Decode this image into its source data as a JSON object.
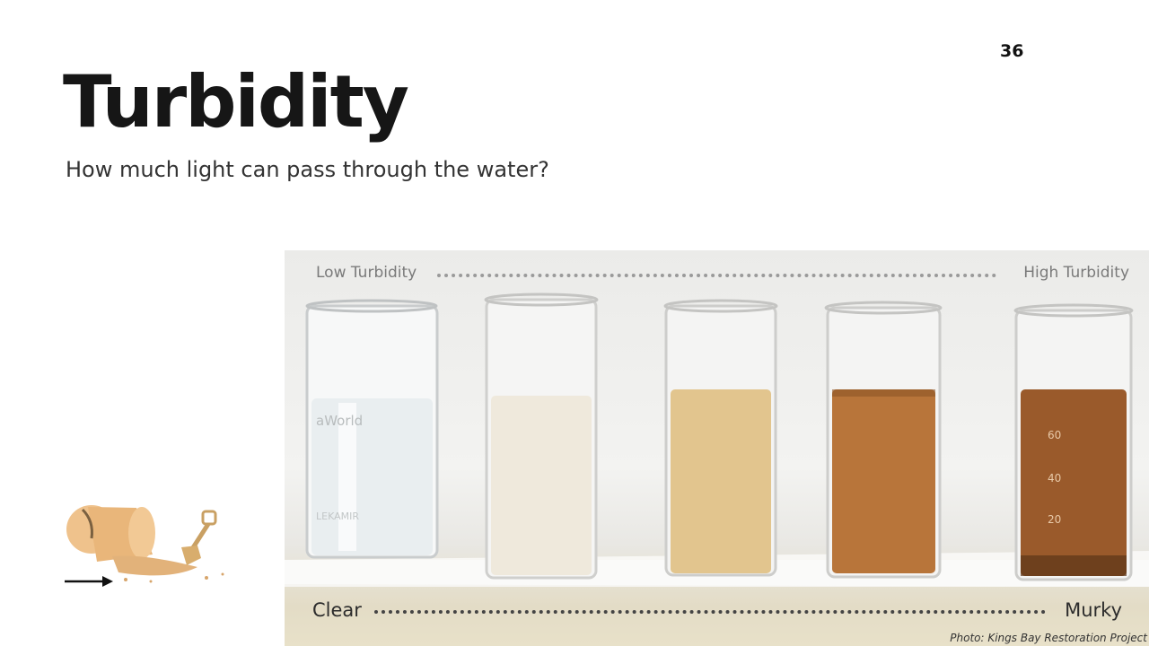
{
  "slide": {
    "page_number": "36",
    "title": "Turbidity",
    "subtitle": "How much light can pass through the water?"
  },
  "photo": {
    "scale_top_left": "Low Turbidity",
    "scale_top_right": "High Turbidity",
    "scale_bottom_left": "Clear",
    "scale_bottom_right": "Murky",
    "credit": "Photo: Kings Bay Restoration Project",
    "beaker_label_text": "aWorld",
    "beaker_label_text_2": "LEKAMIR",
    "graduation_marks": [
      "60",
      "40",
      "20"
    ],
    "water_colors": [
      "#e9eef0",
      "#efe9dc",
      "#e2c58e",
      "#b8753a",
      "#9a5a2b"
    ]
  },
  "decoration": {
    "icon": "bucket-and-shovel-icon",
    "arrow": "arrow-right-icon",
    "accent_color": "#e9b67a"
  }
}
